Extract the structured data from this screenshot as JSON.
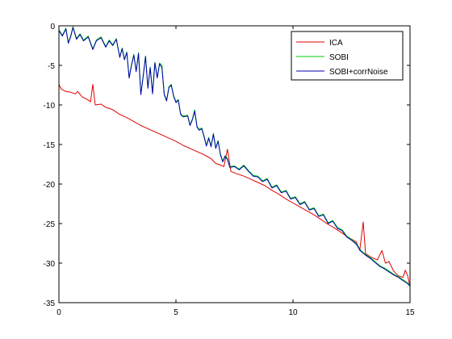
{
  "chart_data": {
    "type": "line",
    "title": "",
    "xlabel": "",
    "ylabel": "",
    "xlim": [
      0,
      15
    ],
    "ylim": [
      -35,
      0
    ],
    "xticks": [
      0,
      5,
      10,
      15
    ],
    "yticks": [
      0,
      -5,
      -10,
      -15,
      -20,
      -25,
      -30,
      -35
    ],
    "grid": false,
    "legend_position": "top-right",
    "series": [
      {
        "name": "ICA",
        "color": "#e00000",
        "points": [
          [
            0.0,
            -7.4
          ],
          [
            0.1,
            -8.0
          ],
          [
            0.3,
            -8.3
          ],
          [
            0.5,
            -8.4
          ],
          [
            0.7,
            -8.6
          ],
          [
            0.8,
            -8.3
          ],
          [
            1.0,
            -9.0
          ],
          [
            1.2,
            -9.3
          ],
          [
            1.35,
            -9.6
          ],
          [
            1.45,
            -7.4
          ],
          [
            1.55,
            -10.0
          ],
          [
            1.8,
            -9.9
          ],
          [
            2.0,
            -10.3
          ],
          [
            2.3,
            -10.6
          ],
          [
            2.6,
            -11.2
          ],
          [
            2.9,
            -11.6
          ],
          [
            3.2,
            -12.1
          ],
          [
            3.5,
            -12.6
          ],
          [
            3.8,
            -13.0
          ],
          [
            4.1,
            -13.4
          ],
          [
            4.4,
            -13.8
          ],
          [
            4.7,
            -14.2
          ],
          [
            5.0,
            -14.6
          ],
          [
            5.3,
            -15.1
          ],
          [
            5.6,
            -15.5
          ],
          [
            5.9,
            -15.9
          ],
          [
            6.2,
            -16.3
          ],
          [
            6.5,
            -16.8
          ],
          [
            6.7,
            -17.4
          ],
          [
            6.9,
            -17.6
          ],
          [
            7.05,
            -17.8
          ],
          [
            7.2,
            -15.6
          ],
          [
            7.35,
            -18.4
          ],
          [
            7.6,
            -18.7
          ],
          [
            7.9,
            -19.0
          ],
          [
            8.2,
            -19.4
          ],
          [
            8.5,
            -19.8
          ],
          [
            8.8,
            -20.2
          ],
          [
            9.1,
            -20.8
          ],
          [
            9.4,
            -21.3
          ],
          [
            9.7,
            -21.9
          ],
          [
            10.0,
            -22.4
          ],
          [
            10.3,
            -22.9
          ],
          [
            10.6,
            -23.4
          ],
          [
            10.9,
            -23.9
          ],
          [
            11.2,
            -24.5
          ],
          [
            11.5,
            -25.1
          ],
          [
            11.8,
            -25.6
          ],
          [
            12.1,
            -26.2
          ],
          [
            12.4,
            -26.8
          ],
          [
            12.7,
            -27.3
          ],
          [
            12.85,
            -28.4
          ],
          [
            13.0,
            -24.8
          ],
          [
            13.1,
            -28.8
          ],
          [
            13.3,
            -29.2
          ],
          [
            13.6,
            -29.6
          ],
          [
            13.8,
            -28.4
          ],
          [
            13.95,
            -30.0
          ],
          [
            14.1,
            -29.8
          ],
          [
            14.3,
            -31.0
          ],
          [
            14.5,
            -31.6
          ],
          [
            14.7,
            -31.8
          ],
          [
            14.8,
            -30.9
          ],
          [
            14.9,
            -31.6
          ],
          [
            15.0,
            -33.0
          ]
        ]
      },
      {
        "name": "SOBI",
        "color": "#00cc00",
        "points": [
          [
            0.0,
            -0.5
          ],
          [
            0.15,
            -1.2
          ],
          [
            0.3,
            -0.3
          ],
          [
            0.4,
            -2.1
          ],
          [
            0.5,
            -1.3
          ],
          [
            0.6,
            -0.1
          ],
          [
            0.75,
            -1.6
          ],
          [
            0.9,
            -1.0
          ],
          [
            1.05,
            -1.8
          ],
          [
            1.25,
            -1.3
          ],
          [
            1.45,
            -2.9
          ],
          [
            1.6,
            -1.8
          ],
          [
            1.8,
            -1.4
          ],
          [
            2.0,
            -2.6
          ],
          [
            2.15,
            -1.8
          ],
          [
            2.3,
            -2.4
          ],
          [
            2.45,
            -1.6
          ],
          [
            2.6,
            -3.9
          ],
          [
            2.7,
            -2.8
          ],
          [
            2.8,
            -4.2
          ],
          [
            2.9,
            -3.3
          ],
          [
            3.0,
            -6.5
          ],
          [
            3.1,
            -4.9
          ],
          [
            3.2,
            -3.6
          ],
          [
            3.3,
            -5.7
          ],
          [
            3.4,
            -3.4
          ],
          [
            3.5,
            -8.6
          ],
          [
            3.6,
            -6.3
          ],
          [
            3.7,
            -3.8
          ],
          [
            3.8,
            -7.8
          ],
          [
            3.9,
            -5.2
          ],
          [
            4.0,
            -8.5
          ],
          [
            4.1,
            -4.6
          ],
          [
            4.2,
            -6.5
          ],
          [
            4.3,
            -4.7
          ],
          [
            4.4,
            -5.0
          ],
          [
            4.5,
            -8.6
          ],
          [
            4.6,
            -9.4
          ],
          [
            4.7,
            -7.7
          ],
          [
            4.8,
            -7.4
          ],
          [
            4.9,
            -8.8
          ],
          [
            5.0,
            -9.6
          ],
          [
            5.1,
            -9.3
          ],
          [
            5.2,
            -11.1
          ],
          [
            5.3,
            -11.4
          ],
          [
            5.5,
            -11.3
          ],
          [
            5.6,
            -12.5
          ],
          [
            5.7,
            -11.8
          ],
          [
            5.8,
            -10.6
          ],
          [
            5.9,
            -12.7
          ],
          [
            6.0,
            -13.1
          ],
          [
            6.1,
            -12.9
          ],
          [
            6.2,
            -13.9
          ],
          [
            6.3,
            -15.1
          ],
          [
            6.4,
            -14.1
          ],
          [
            6.5,
            -15.2
          ],
          [
            6.6,
            -13.6
          ],
          [
            6.7,
            -15.4
          ],
          [
            6.8,
            -14.5
          ],
          [
            6.9,
            -16.2
          ],
          [
            7.0,
            -17.1
          ],
          [
            7.1,
            -16.4
          ],
          [
            7.2,
            -16.8
          ],
          [
            7.3,
            -17.8
          ],
          [
            7.5,
            -17.7
          ],
          [
            7.7,
            -18.1
          ],
          [
            7.9,
            -17.6
          ],
          [
            8.1,
            -18.3
          ],
          [
            8.3,
            -18.9
          ],
          [
            8.5,
            -19.0
          ],
          [
            8.7,
            -19.6
          ],
          [
            8.9,
            -19.3
          ],
          [
            9.1,
            -20.4
          ],
          [
            9.3,
            -20.1
          ],
          [
            9.5,
            -21.0
          ],
          [
            9.7,
            -20.8
          ],
          [
            9.9,
            -21.8
          ],
          [
            10.1,
            -21.6
          ],
          [
            10.3,
            -22.5
          ],
          [
            10.5,
            -22.2
          ],
          [
            10.7,
            -23.2
          ],
          [
            10.9,
            -23.0
          ],
          [
            11.1,
            -24.0
          ],
          [
            11.3,
            -23.8
          ],
          [
            11.5,
            -24.9
          ],
          [
            11.7,
            -24.6
          ],
          [
            11.9,
            -25.5
          ],
          [
            12.1,
            -25.8
          ],
          [
            12.3,
            -26.6
          ],
          [
            12.5,
            -27.0
          ],
          [
            12.7,
            -27.5
          ],
          [
            12.9,
            -28.4
          ],
          [
            13.1,
            -28.9
          ],
          [
            13.3,
            -29.3
          ],
          [
            13.5,
            -29.8
          ],
          [
            13.7,
            -30.3
          ],
          [
            13.9,
            -30.6
          ],
          [
            14.1,
            -31.0
          ],
          [
            14.3,
            -31.4
          ],
          [
            14.5,
            -31.7
          ],
          [
            14.7,
            -32.1
          ],
          [
            14.9,
            -32.5
          ],
          [
            15.0,
            -32.8
          ]
        ]
      },
      {
        "name": "SOBI+corrNoise",
        "color": "#0000b4",
        "points": [
          [
            0.0,
            -0.6
          ],
          [
            0.15,
            -1.3
          ],
          [
            0.3,
            -0.4
          ],
          [
            0.4,
            -2.2
          ],
          [
            0.5,
            -1.4
          ],
          [
            0.6,
            -0.2
          ],
          [
            0.75,
            -1.7
          ],
          [
            0.9,
            -1.1
          ],
          [
            1.05,
            -1.9
          ],
          [
            1.25,
            -1.4
          ],
          [
            1.45,
            -3.0
          ],
          [
            1.6,
            -1.9
          ],
          [
            1.8,
            -1.5
          ],
          [
            2.0,
            -2.7
          ],
          [
            2.15,
            -1.9
          ],
          [
            2.3,
            -2.5
          ],
          [
            2.45,
            -1.7
          ],
          [
            2.6,
            -4.0
          ],
          [
            2.7,
            -2.9
          ],
          [
            2.8,
            -4.3
          ],
          [
            2.9,
            -3.4
          ],
          [
            3.0,
            -6.6
          ],
          [
            3.1,
            -5.0
          ],
          [
            3.2,
            -3.7
          ],
          [
            3.3,
            -5.8
          ],
          [
            3.4,
            -3.5
          ],
          [
            3.5,
            -8.7
          ],
          [
            3.6,
            -6.4
          ],
          [
            3.7,
            -3.9
          ],
          [
            3.8,
            -7.9
          ],
          [
            3.9,
            -5.3
          ],
          [
            4.0,
            -8.6
          ],
          [
            4.1,
            -4.7
          ],
          [
            4.2,
            -6.6
          ],
          [
            4.3,
            -4.8
          ],
          [
            4.4,
            -5.3
          ],
          [
            4.5,
            -8.7
          ],
          [
            4.6,
            -9.5
          ],
          [
            4.7,
            -7.8
          ],
          [
            4.8,
            -7.5
          ],
          [
            4.9,
            -8.9
          ],
          [
            5.0,
            -9.7
          ],
          [
            5.1,
            -9.4
          ],
          [
            5.2,
            -11.2
          ],
          [
            5.3,
            -11.5
          ],
          [
            5.5,
            -11.4
          ],
          [
            5.6,
            -12.6
          ],
          [
            5.7,
            -11.9
          ],
          [
            5.8,
            -10.8
          ],
          [
            5.9,
            -12.8
          ],
          [
            6.0,
            -13.2
          ],
          [
            6.1,
            -13.0
          ],
          [
            6.2,
            -14.0
          ],
          [
            6.3,
            -15.2
          ],
          [
            6.4,
            -14.2
          ],
          [
            6.5,
            -15.3
          ],
          [
            6.6,
            -13.7
          ],
          [
            6.7,
            -15.5
          ],
          [
            6.8,
            -14.6
          ],
          [
            6.9,
            -16.3
          ],
          [
            7.0,
            -17.2
          ],
          [
            7.1,
            -16.5
          ],
          [
            7.2,
            -16.9
          ],
          [
            7.3,
            -17.9
          ],
          [
            7.5,
            -17.8
          ],
          [
            7.7,
            -18.2
          ],
          [
            7.9,
            -17.7
          ],
          [
            8.1,
            -18.4
          ],
          [
            8.3,
            -19.0
          ],
          [
            8.5,
            -19.1
          ],
          [
            8.7,
            -19.7
          ],
          [
            8.9,
            -19.4
          ],
          [
            9.1,
            -20.5
          ],
          [
            9.3,
            -20.2
          ],
          [
            9.5,
            -21.1
          ],
          [
            9.7,
            -20.9
          ],
          [
            9.9,
            -21.9
          ],
          [
            10.1,
            -21.7
          ],
          [
            10.3,
            -22.6
          ],
          [
            10.5,
            -22.3
          ],
          [
            10.7,
            -23.3
          ],
          [
            10.9,
            -23.1
          ],
          [
            11.1,
            -24.1
          ],
          [
            11.3,
            -23.9
          ],
          [
            11.5,
            -25.0
          ],
          [
            11.7,
            -24.7
          ],
          [
            11.9,
            -25.6
          ],
          [
            12.1,
            -25.9
          ],
          [
            12.3,
            -26.7
          ],
          [
            12.5,
            -27.1
          ],
          [
            12.7,
            -27.6
          ],
          [
            12.9,
            -28.5
          ],
          [
            13.1,
            -29.0
          ],
          [
            13.3,
            -29.4
          ],
          [
            13.5,
            -29.9
          ],
          [
            13.7,
            -30.4
          ],
          [
            13.9,
            -30.7
          ],
          [
            14.1,
            -31.1
          ],
          [
            14.3,
            -31.5
          ],
          [
            14.5,
            -31.8
          ],
          [
            14.7,
            -32.2
          ],
          [
            14.9,
            -32.6
          ],
          [
            15.0,
            -32.9
          ]
        ]
      }
    ]
  }
}
